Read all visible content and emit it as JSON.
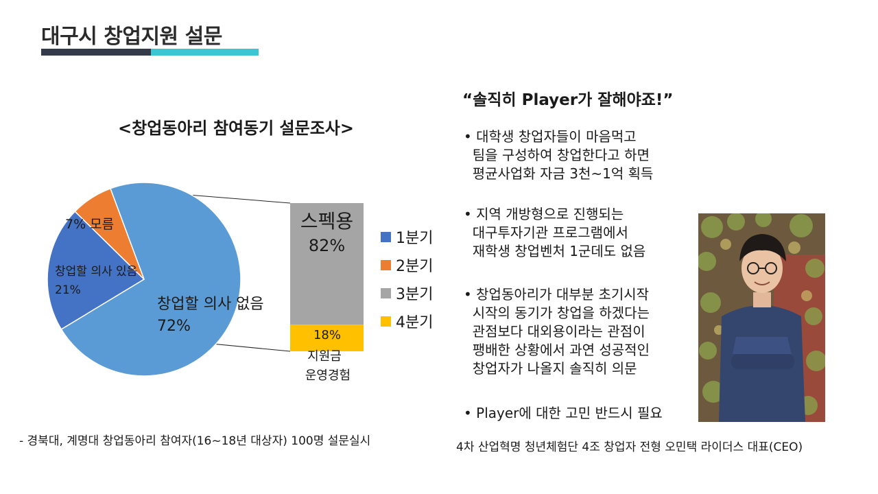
{
  "page": {
    "title": "대구시 창업지원 설문",
    "footnote": "- 경북대, 계명대 창업동아리 참여자(16~18년  대상자) 100명 설문실시",
    "accent_dark": "#333b4a",
    "accent_teal": "#3cc6d4"
  },
  "chart_data": {
    "type": "pie",
    "title": "<창업동아리 참여동기 설문조사>",
    "pie": {
      "slices": [
        {
          "label_line1": "창업할 의사 없음",
          "label_line2": "72%",
          "value": 72,
          "color": "#5b9bd5"
        },
        {
          "label_line1": "창업할 의사 있음",
          "label_line2": "21%",
          "value": 21,
          "color": "#4472c4"
        },
        {
          "label_line1": "7%  모름",
          "label_line2": "",
          "value": 7,
          "color": "#ed7d31"
        }
      ]
    },
    "breakdown": {
      "of_slice": "창업할 의사 없음",
      "segments": [
        {
          "label_line1": "스펙용",
          "label_line2": "82%",
          "value": 82,
          "color": "#a5a5a5"
        },
        {
          "label_line1": "18%",
          "label_line2": "지원금",
          "label_line3": "운영경험",
          "value": 18,
          "color": "#ffc000"
        }
      ]
    },
    "legend": [
      {
        "label": "1분기",
        "color": "#4472c4"
      },
      {
        "label": "2분기",
        "color": "#ed7d31"
      },
      {
        "label": "3분기",
        "color": "#a5a5a5"
      },
      {
        "label": "4분기",
        "color": "#ffc000"
      }
    ]
  },
  "right": {
    "quote": "“솔직히 Player가 잘해야죠!”",
    "bullets": [
      "• 대학생 창업자들이 마음먹고\n  팀을 구성하여 창업한다고 하면\n  평균사업화 자금 3천~1억 획득",
      "• 지역 개방형으로 진행되는\n  대구투자기관 프로그램에서\n  재학생 창업벤처 1군데도 없음",
      "• 창업동아리가 대부분 초기시작\n  시작의 동기가 창업을 하겠다는\n  관점보다 대외용이라는 관점이\n  팽배한 상황에서 과연 성공적인\n  창업자가 나올지 솔직히 의문",
      "• Player에 대한 고민 반드시 필요"
    ],
    "caption": "4차 산업혁명 청년체험단 4조 창업자 전형 오민택 라이더스 대표(CEO)"
  }
}
